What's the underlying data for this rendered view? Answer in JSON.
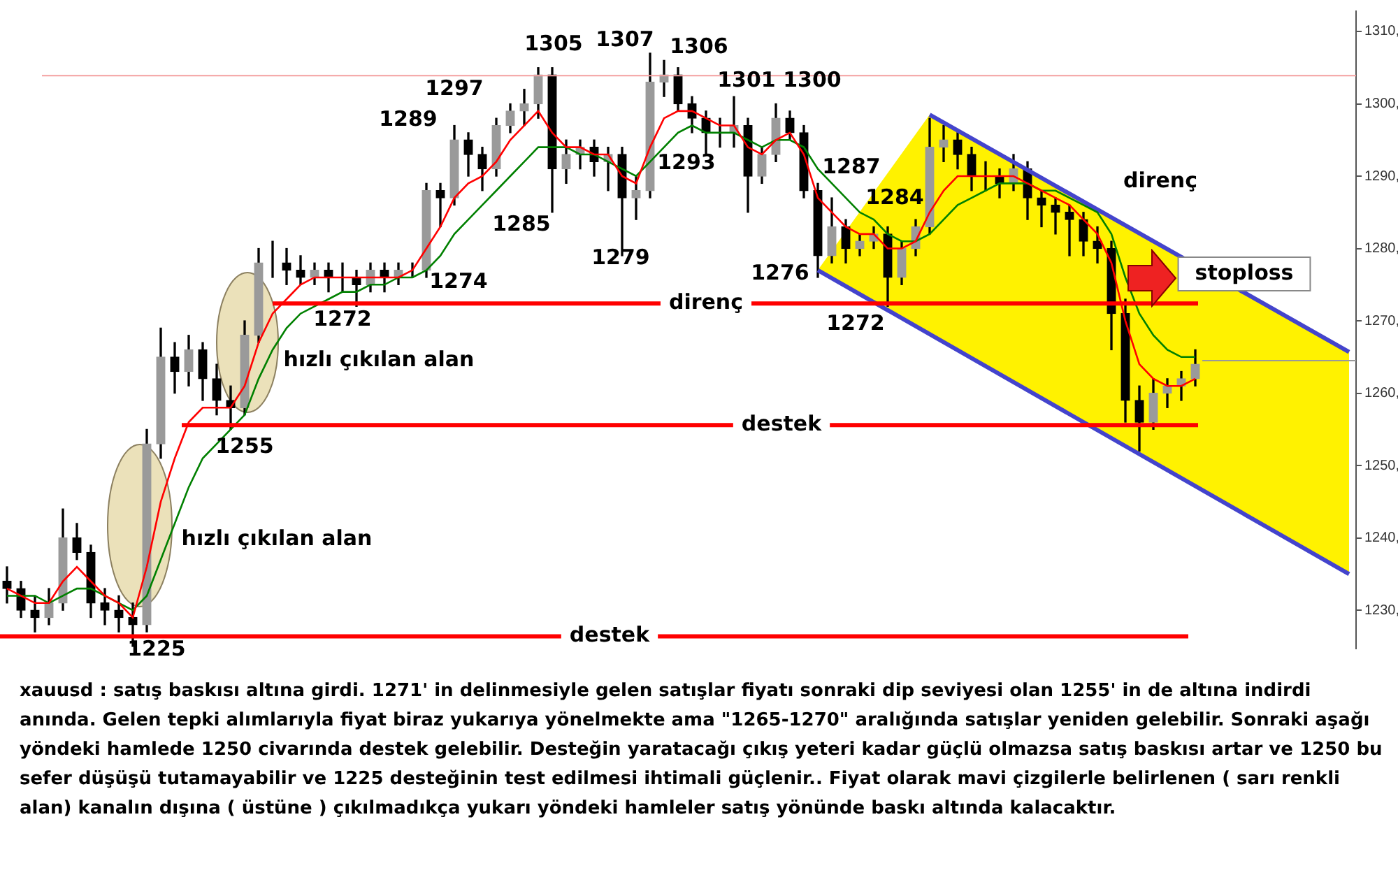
{
  "chart_data": {
    "type": "candlestick",
    "color": "#000000",
    "colors": [
      "#000000",
      "#000000",
      "#000000",
      "#9a9a9a",
      "#9a9a9a",
      "#000000",
      "#000000",
      "#000000",
      "#000000",
      "#000000",
      "#9a9a9a",
      "#9a9a9a",
      "#000000",
      "#9a9a9a",
      "#000000",
      "#000000",
      "#000000",
      "#9a9a9a",
      "#9a9a9a",
      "#9a9a9a",
      "#000000",
      "#000000",
      "#9a9a9a",
      "#000000",
      "#9a9a9a",
      "#000000",
      "#9a9a9a",
      "#000000",
      "#9a9a9a",
      "#9a9a9a",
      "#9a9a9a",
      "#000000",
      "#9a9a9a",
      "#000000",
      "#000000",
      "#9a9a9a",
      "#9a9a9a",
      "#9a9a9a",
      "#9a9a9a",
      "#000000",
      "#9a9a9a",
      "#9a9a9a",
      "#000000",
      "#9a9a9a",
      "#000000",
      "#9a9a9a",
      "#9a9a9a",
      "#9a9a9a",
      "#000000",
      "#000000",
      "#000000",
      "#9a9a9a",
      "#9a9a9a",
      "#000000",
      "#9a9a9a",
      "#9a9a9a",
      "#000000",
      "#000000",
      "#000000",
      "#9a9a9a",
      "#000000",
      "#9a9a9a",
      "#9a9a9a",
      "#000000",
      "#9a9a9a",
      "#9a9a9a",
      "#9a9a9a",
      "#9a9a9a",
      "#000000",
      "#000000",
      "#9a9a9a",
      "#000000",
      "#9a9a9a",
      "#000000",
      "#000000",
      "#000000",
      "#000000",
      "#000000",
      "#000000",
      "#000000",
      "#000000",
      "#000000",
      "#9a9a9a",
      "#9a9a9a",
      "#9a9a9a",
      "#9a9a9a",
      null,
      null,
      null,
      null,
      null,
      null,
      null,
      null,
      null,
      null,
      null
    ],
    "categories": [
      null,
      null,
      null,
      null,
      null,
      null,
      null,
      null,
      null,
      null,
      null,
      null,
      null,
      null,
      null,
      null,
      null,
      null,
      null,
      null,
      null,
      null,
      null,
      null,
      null,
      null,
      null,
      null,
      null,
      null,
      null,
      null,
      null,
      null,
      null,
      null,
      null,
      null,
      null,
      null,
      null,
      null,
      null,
      null,
      null,
      null,
      null,
      null,
      null,
      null,
      null,
      null,
      null,
      null,
      null,
      null,
      null,
      null,
      null,
      null,
      null,
      null,
      null,
      null,
      null,
      null,
      null,
      null,
      null,
      null,
      null,
      null,
      null,
      null,
      null,
      null,
      null,
      null,
      null,
      null,
      null,
      null,
      null,
      null,
      null,
      null,
      null,
      null,
      null,
      null,
      null,
      null,
      null,
      null,
      null,
      null,
      null
    ],
    "ohlc": [
      [
        1234,
        1236,
        1231,
        1233
      ],
      [
        1233,
        1234,
        1229,
        1230
      ],
      [
        1230,
        1232,
        1227,
        1229
      ],
      [
        1229,
        1233,
        1228,
        1231
      ],
      [
        1231,
        1244,
        1230,
        1240
      ],
      [
        1240,
        1242,
        1237,
        1238
      ],
      [
        1238,
        1239,
        1229,
        1231
      ],
      [
        1231,
        1233,
        1228,
        1230
      ],
      [
        1230,
        1232,
        1227,
        1229
      ],
      [
        1229,
        1231,
        1225,
        1228
      ],
      [
        1228,
        1255,
        1227,
        1253
      ],
      [
        1253,
        1269,
        1251,
        1265
      ],
      [
        1265,
        1267,
        1260,
        1263
      ],
      [
        1263,
        1268,
        1261,
        1266
      ],
      [
        1266,
        1267,
        1259,
        1262
      ],
      [
        1262,
        1264,
        1257,
        1259
      ],
      [
        1259,
        1261,
        1255,
        1258
      ],
      [
        1258,
        1270,
        1257,
        1268
      ],
      [
        1268,
        1280,
        1267,
        1278
      ],
      [
        1278,
        1281,
        1276,
        1278
      ],
      [
        1278,
        1280,
        1275,
        1277
      ],
      [
        1277,
        1279,
        1275,
        1276
      ],
      [
        1276,
        1278,
        1275,
        1277
      ],
      [
        1277,
        1278,
        1274,
        1276
      ],
      [
        1276,
        1278,
        1274,
        1276
      ],
      [
        1276,
        1277,
        1272,
        1275
      ],
      [
        1275,
        1278,
        1274,
        1277
      ],
      [
        1277,
        1278,
        1274,
        1276
      ],
      [
        1276,
        1278,
        1275,
        1277
      ],
      [
        1277,
        1278,
        1276,
        1277
      ],
      [
        1277,
        1289,
        1276,
        1288
      ],
      [
        1288,
        1289,
        1283,
        1287
      ],
      [
        1287,
        1297,
        1286,
        1295
      ],
      [
        1295,
        1296,
        1290,
        1293
      ],
      [
        1293,
        1294,
        1288,
        1291
      ],
      [
        1291,
        1298,
        1290,
        1297
      ],
      [
        1297,
        1300,
        1296,
        1299
      ],
      [
        1299,
        1302,
        1297,
        1300
      ],
      [
        1300,
        1305,
        1298,
        1304
      ],
      [
        1304,
        1305,
        1285,
        1291
      ],
      [
        1291,
        1295,
        1289,
        1293
      ],
      [
        1293,
        1295,
        1291,
        1294
      ],
      [
        1294,
        1295,
        1290,
        1292
      ],
      [
        1292,
        1294,
        1288,
        1293
      ],
      [
        1293,
        1294,
        1279,
        1287
      ],
      [
        1287,
        1290,
        1284,
        1288
      ],
      [
        1288,
        1307,
        1287,
        1303
      ],
      [
        1303,
        1306,
        1301,
        1304
      ],
      [
        1304,
        1305,
        1299,
        1300
      ],
      [
        1300,
        1301,
        1296,
        1298
      ],
      [
        1298,
        1299,
        1293,
        1296
      ],
      [
        1296,
        1298,
        1294,
        1296
      ],
      [
        1296,
        1301,
        1294,
        1297
      ],
      [
        1297,
        1298,
        1285,
        1290
      ],
      [
        1290,
        1294,
        1289,
        1293
      ],
      [
        1293,
        1300,
        1292,
        1298
      ],
      [
        1298,
        1299,
        1295,
        1296
      ],
      [
        1296,
        1297,
        1287,
        1288
      ],
      [
        1288,
        1289,
        1276,
        1279
      ],
      [
        1279,
        1287,
        1278,
        1283
      ],
      [
        1283,
        1284,
        1278,
        1280
      ],
      [
        1280,
        1282,
        1279,
        1281
      ],
      [
        1281,
        1283,
        1280,
        1282
      ],
      [
        1282,
        1283,
        1272,
        1276
      ],
      [
        1276,
        1281,
        1275,
        1280
      ],
      [
        1280,
        1284,
        1279,
        1283
      ],
      [
        1283,
        1298,
        1282,
        1294
      ],
      [
        1294,
        1297,
        1292,
        1295
      ],
      [
        1295,
        1296,
        1291,
        1293
      ],
      [
        1293,
        1294,
        1288,
        1290
      ],
      [
        1290,
        1292,
        1288,
        1290
      ],
      [
        1290,
        1291,
        1287,
        1289
      ],
      [
        1289,
        1293,
        1288,
        1291
      ],
      [
        1291,
        1292,
        1284,
        1287
      ],
      [
        1287,
        1288,
        1283,
        1286
      ],
      [
        1286,
        1287,
        1282,
        1285
      ],
      [
        1285,
        1286,
        1279,
        1284
      ],
      [
        1284,
        1285,
        1279,
        1281
      ],
      [
        1281,
        1283,
        1278,
        1280
      ],
      [
        1280,
        1281,
        1266,
        1271
      ],
      [
        1271,
        1273,
        1256,
        1259
      ],
      [
        1259,
        1261,
        1252,
        1256
      ],
      [
        1256,
        1262,
        1255,
        1260
      ],
      [
        1260,
        1262,
        1258,
        1261
      ],
      [
        1261,
        1263,
        1259,
        1262
      ],
      [
        1262,
        1266,
        1261,
        1264
      ],
      null,
      null,
      null,
      null,
      null,
      null,
      null,
      null,
      null,
      null,
      null
    ],
    "series": [
      {
        "type": "line",
        "color": "#ff0000",
        "values": [
          1233,
          1232,
          1231,
          1231,
          1234,
          1236,
          1234,
          1232,
          1231,
          1229,
          1236,
          1245,
          1251,
          1256,
          1258,
          1258,
          1258,
          1261,
          1267,
          1271,
          1273,
          1275,
          1276,
          1276,
          1276,
          1276,
          1276,
          1276,
          1276,
          1277,
          1280,
          1283,
          1287,
          1289,
          1290,
          1292,
          1295,
          1297,
          1299,
          1296,
          1294,
          1294,
          1293,
          1293,
          1290,
          1289,
          1294,
          1298,
          1299,
          1299,
          1298,
          1297,
          1297,
          1294,
          1293,
          1295,
          1296,
          1293,
          1287,
          1285,
          1283,
          1282,
          1282,
          1280,
          1280,
          1281,
          1285,
          1288,
          1290,
          1290,
          1290,
          1290,
          1290,
          1289,
          1288,
          1287,
          1286,
          1284,
          1282,
          1278,
          1270,
          1264,
          1262,
          1261,
          1261,
          1262,
          null,
          null,
          null,
          null,
          null,
          null,
          null,
          null,
          null,
          null,
          null
        ]
      },
      {
        "type": "line",
        "color": "#008000",
        "values": [
          1232,
          1232,
          1232,
          1231,
          1232,
          1233,
          1233,
          1232,
          1231,
          1230,
          1232,
          1237,
          1242,
          1247,
          1251,
          1253,
          1255,
          1257,
          1262,
          1266,
          1269,
          1271,
          1272,
          1273,
          1274,
          1274,
          1275,
          1275,
          1276,
          1276,
          1277,
          1279,
          1282,
          1284,
          1286,
          1288,
          1290,
          1292,
          1294,
          1294,
          1294,
          1293,
          1293,
          1292,
          1291,
          1290,
          1292,
          1294,
          1296,
          1297,
          1296,
          1296,
          1296,
          1295,
          1294,
          1295,
          1295,
          1294,
          1291,
          1289,
          1287,
          1285,
          1284,
          1282,
          1281,
          1281,
          1282,
          1284,
          1286,
          1287,
          1288,
          1289,
          1289,
          1289,
          1288,
          1288,
          1287,
          1286,
          1285,
          1282,
          1276,
          1271,
          1268,
          1266,
          1265,
          1265,
          null,
          null,
          null,
          null,
          null,
          null,
          null,
          null,
          null,
          null,
          null
        ]
      },
      {
        "type": "line",
        "color": "#4444cc",
        "values": [
          null,
          null,
          null,
          null,
          null,
          null,
          null,
          null,
          null,
          null,
          null,
          null,
          null,
          null,
          null,
          null,
          null,
          null,
          null,
          null,
          null,
          null,
          null,
          null,
          null,
          null,
          null,
          null,
          null,
          null,
          null,
          null,
          null,
          null,
          null,
          null,
          null,
          null,
          null,
          null,
          null,
          null,
          null,
          null,
          null,
          null,
          null,
          null,
          null,
          null,
          null,
          null,
          null,
          null,
          null,
          null,
          null,
          null,
          null,
          null,
          null,
          null,
          null,
          null,
          null,
          null,
          1298.5,
          null,
          null,
          null,
          null,
          null,
          null,
          null,
          null,
          null,
          null,
          null,
          null,
          null,
          null,
          null,
          null,
          null,
          null,
          null,
          null,
          null,
          null,
          null,
          null,
          null,
          null,
          null,
          null,
          null,
          1265.7
        ]
      },
      {
        "type": "line",
        "color": "#4444cc",
        "values": [
          null,
          null,
          null,
          null,
          null,
          null,
          null,
          null,
          null,
          null,
          null,
          null,
          null,
          null,
          null,
          null,
          null,
          null,
          null,
          null,
          null,
          null,
          null,
          null,
          null,
          null,
          null,
          null,
          null,
          null,
          null,
          null,
          null,
          null,
          null,
          null,
          null,
          null,
          null,
          null,
          null,
          null,
          null,
          null,
          null,
          null,
          null,
          null,
          null,
          null,
          null,
          null,
          null,
          null,
          null,
          null,
          null,
          null,
          1277,
          null,
          null,
          null,
          null,
          null,
          null,
          null,
          null,
          null,
          null,
          null,
          null,
          null,
          null,
          null,
          null,
          null,
          null,
          null,
          null,
          null,
          null,
          null,
          null,
          null,
          null,
          null,
          null,
          null,
          null,
          null,
          null,
          null,
          null,
          null,
          null,
          null,
          1235
        ]
      }
    ],
    "ylim": [
      1224.7,
      1312.8
    ],
    "yticks": [
      {
        "value": 1230,
        "label": "1230,"
      },
      {
        "value": 1240,
        "label": "1240,"
      },
      {
        "value": 1250,
        "label": "1250,"
      },
      {
        "value": 1260,
        "label": "1260,"
      },
      {
        "value": 1270,
        "label": "1270,"
      },
      {
        "value": 1280,
        "label": "1280,"
      },
      {
        "value": 1290,
        "label": "1290,"
      },
      {
        "value": 1300,
        "label": "1300,"
      },
      {
        "value": 1310,
        "label": "1310,"
      }
    ],
    "ref_lines": [
      {
        "axis": "y",
        "value": 1272.4,
        "label": "direnç",
        "color": "#ff0000"
      },
      {
        "axis": "y",
        "value": 1255.6,
        "label": "destek",
        "color": "#ff0000"
      },
      {
        "axis": "y",
        "value": 1226.4,
        "label": "destek",
        "color": "#ff0000"
      },
      {
        "axis": "y",
        "value": 1303.9,
        "color": "#f4a0a0"
      },
      {
        "axis": "y",
        "value": 1264.5,
        "color": "#999999"
      }
    ],
    "annotations": [
      "1225",
      "1255",
      "1272",
      "1274",
      "1289",
      "1297",
      "1285",
      "1305",
      "1307",
      "1306",
      "1301",
      "1300",
      "1279",
      "1293",
      "1287",
      "1284",
      "1276",
      "1272",
      "hızlı çıkılan alan",
      "hızlı çıkılan alan",
      "direnç",
      "stoploss",
      "xauusd : satış baskısı altına girdi. 1271' in delinmesiyle gelen satışlar fiyatı sonraki dip seviyesi olan 1255' in de altına indirdi anında. Gelen tepki alımlarıyla fiyat biraz yukarıya yönelmekte ama \"1265-1270\" aralığında satışlar yeniden gelebilir. Sonraki aşağı yöndeki hamlede 1250 civarında destek gelebilir. Desteğin yaratacağı çıkış yeteri kadar güçlü olmazsa satış baskısı artar ve 1250 bu sefer düşüşü tutamayabilir ve 1225 desteğinin test edilmesi ihtimali güçlenir.. Fiyat olarak mavi çizgilerle belirlenen ( sarı renkli alan) kanalın dışına ( üstüne ) çıkılmadıkça yukarı yöndeki hamleler satış yönünde baskı altında kalacaktır."
    ],
    "grid": false,
    "legend": false
  }
}
